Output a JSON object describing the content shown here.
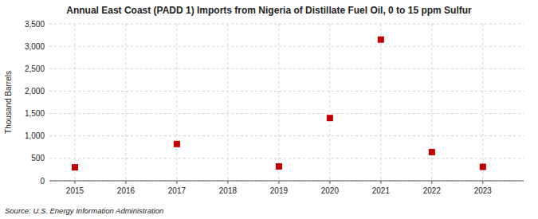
{
  "chart_data": {
    "type": "scatter",
    "title": "Annual East Coast (PADD 1) Imports from Nigeria of Distillate Fuel Oil, 0 to 15 ppm Sulfur",
    "ylabel": "Thousand Barrels",
    "source": "Source: U.S. Energy Information Administration",
    "x": [
      2015,
      2016,
      2017,
      2018,
      2019,
      2020,
      2021,
      2022,
      2023
    ],
    "values": [
      300,
      null,
      820,
      null,
      320,
      1400,
      3150,
      640,
      310
    ],
    "color": "#c00000",
    "marker": "square",
    "xlim": [
      2014.5,
      2023.8
    ],
    "xticks": [
      2015,
      2016,
      2017,
      2018,
      2019,
      2020,
      2021,
      2022,
      2023
    ],
    "ylim": [
      0,
      3500
    ],
    "yticks": [
      0,
      500,
      {
        "value": 1000,
        "label": "1,000"
      },
      {
        "value": 1500,
        "label": "1,500"
      },
      {
        "value": 2000,
        "label": "2,000"
      },
      {
        "value": 2500,
        "label": "2,500"
      },
      {
        "value": 3000,
        "label": "3,000"
      },
      {
        "value": 3500,
        "label": "3,500"
      }
    ],
    "grid": true
  }
}
